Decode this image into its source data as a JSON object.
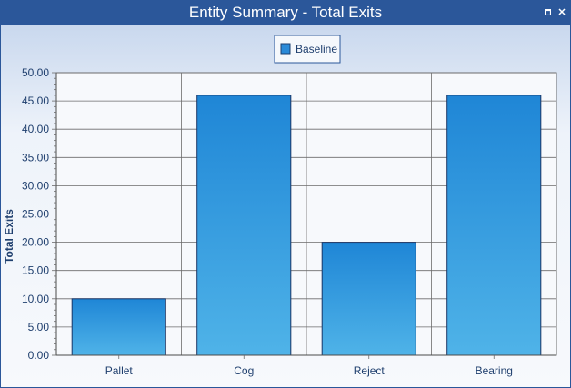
{
  "window": {
    "title": "Entity Summary - Total Exits",
    "title_bar_color": "#2b579a"
  },
  "icons": {
    "restore": "restore-icon",
    "close": "close-icon"
  },
  "chart_data": {
    "type": "bar",
    "title": "",
    "xlabel": "",
    "ylabel": "Total Exits",
    "categories": [
      "Pallet",
      "Cog",
      "Reject",
      "Bearing"
    ],
    "series": [
      {
        "name": "Baseline",
        "values": [
          10,
          46,
          20,
          46
        ],
        "color": "#2a8ad8"
      }
    ],
    "ylim": [
      0,
      50
    ],
    "y_ticks": [
      "0.00",
      "5.00",
      "10.00",
      "15.00",
      "20.00",
      "25.00",
      "30.00",
      "35.00",
      "40.00",
      "45.00",
      "50.00"
    ],
    "grid": true,
    "legend_position": "top-center"
  }
}
